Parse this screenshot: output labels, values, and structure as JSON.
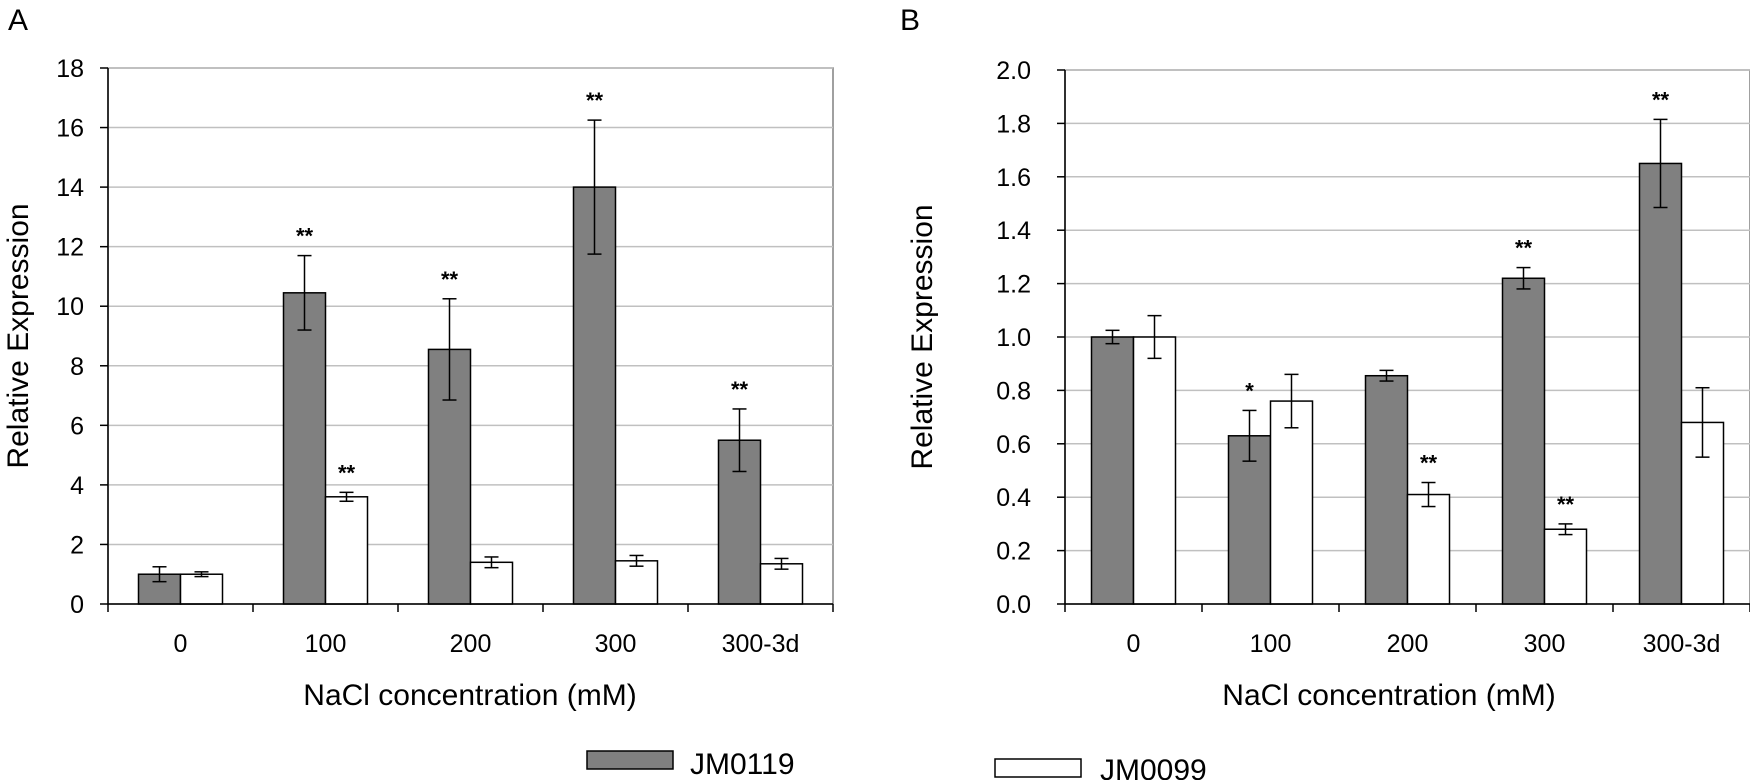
{
  "legend": [
    {
      "name": "JM0119",
      "color": "#808080"
    },
    {
      "name": "JM0099",
      "color": "#ffffff"
    }
  ],
  "chart_data": [
    {
      "type": "bar",
      "panel": "A",
      "categories": [
        "0",
        "100",
        "200",
        "300",
        "300-3d"
      ],
      "series": [
        {
          "name": "JM0119",
          "color": "#808080",
          "values": [
            1.0,
            10.45,
            8.55,
            14.0,
            5.5
          ],
          "errors": [
            0.25,
            1.25,
            1.7,
            2.25,
            1.05
          ],
          "annotations": [
            "",
            "**",
            "**",
            "**",
            "**"
          ]
        },
        {
          "name": "JM0099",
          "color": "#ffffff",
          "values": [
            1.0,
            3.6,
            1.4,
            1.45,
            1.35
          ],
          "errors": [
            0.08,
            0.15,
            0.18,
            0.18,
            0.18
          ],
          "annotations": [
            "",
            "**",
            "",
            "",
            ""
          ]
        }
      ],
      "xlabel": "NaCl concentration (mM)",
      "ylabel": "Relative Expression",
      "ylim": [
        0,
        18
      ],
      "yticks": [
        "0",
        "2",
        "4",
        "6",
        "8",
        "10",
        "12",
        "14",
        "16",
        "18"
      ],
      "grid": true
    },
    {
      "type": "bar",
      "panel": "B",
      "categories": [
        "0",
        "100",
        "200",
        "300",
        "300-3d"
      ],
      "series": [
        {
          "name": "JM0119",
          "color": "#808080",
          "values": [
            1.0,
            0.63,
            0.855,
            1.22,
            1.65
          ],
          "errors": [
            0.025,
            0.095,
            0.02,
            0.04,
            0.165
          ],
          "annotations": [
            "",
            "*",
            "",
            "**",
            "**"
          ]
        },
        {
          "name": "JM0099",
          "color": "#ffffff",
          "values": [
            1.0,
            0.76,
            0.41,
            0.28,
            0.68
          ],
          "errors": [
            0.08,
            0.1,
            0.045,
            0.02,
            0.13
          ],
          "annotations": [
            "",
            "",
            "**",
            "**",
            ""
          ]
        }
      ],
      "xlabel": "NaCl concentration (mM)",
      "ylabel": "Relative Expression",
      "ylim": [
        0,
        2.0
      ],
      "yticks": [
        "0.0",
        "0.2",
        "0.4",
        "0.6",
        "0.8",
        "1.0",
        "1.2",
        "1.4",
        "1.6",
        "1.8",
        "2.0"
      ],
      "grid": true
    }
  ]
}
